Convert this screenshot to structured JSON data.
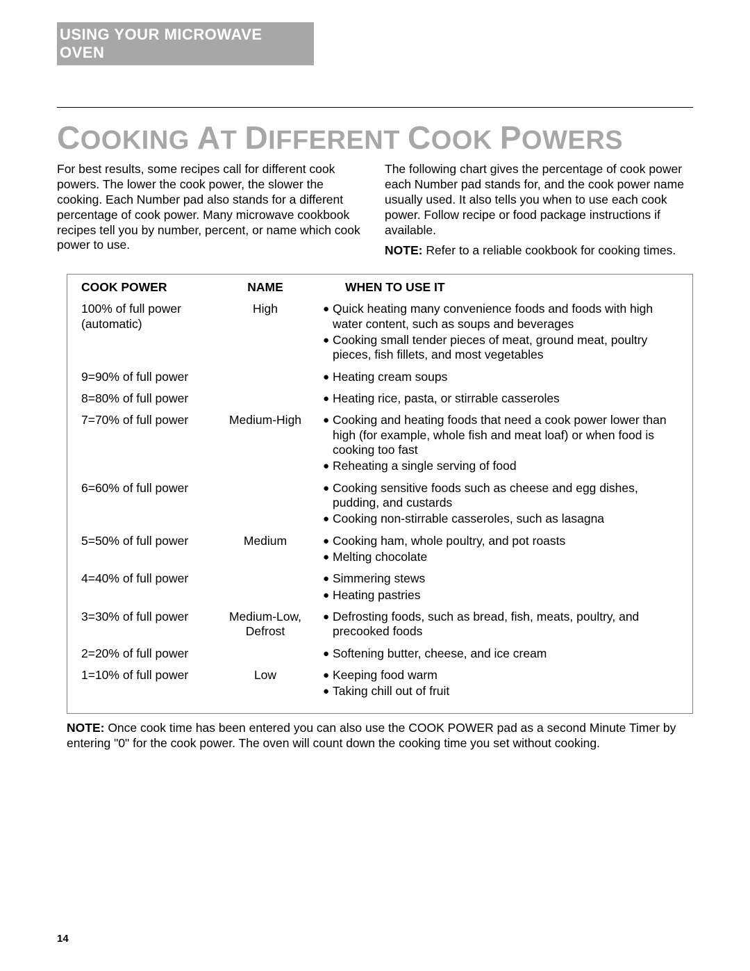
{
  "header": {
    "section": "USING YOUR MICROWAVE OVEN"
  },
  "title": {
    "cap1": "C",
    "part1": "OOKING ",
    "cap2": "A",
    "part2": "T ",
    "cap3": "D",
    "part3": "IFFERENT ",
    "cap4": "C",
    "part4": "OOK ",
    "cap5": "P",
    "part5": "OWERS"
  },
  "intro": {
    "left": "For best results, some recipes call for different cook powers. The lower the cook power, the slower the cooking. Each Number pad also stands for a different percentage of cook power. Many microwave cookbook recipes tell you by number, percent, or name which cook power to use.",
    "right1": "The following chart gives the percentage of cook power each Number pad stands for, and the cook power name usually used. It also tells you when to use each cook power. Follow recipe or food package instructions if available.",
    "note_label": "NOTE:",
    "right2": " Refer to a reliable cookbook for cooking times."
  },
  "table": {
    "headers": {
      "power": "Cook Power",
      "name": "Name",
      "use": "When To Use It"
    },
    "rows": [
      {
        "power": "100% of full power (automatic)",
        "name": "High",
        "uses": [
          "Quick heating many convenience foods and foods with high water content, such as soups and beverages",
          "Cooking small tender pieces of meat, ground meat, poultry pieces, fish fillets, and most vegetables"
        ]
      },
      {
        "power": "9=90% of full power",
        "name": "",
        "uses": [
          "Heating cream soups"
        ]
      },
      {
        "power": "8=80% of full power",
        "name": "",
        "uses": [
          "Heating rice, pasta, or stirrable casseroles"
        ]
      },
      {
        "power": "7=70% of full power",
        "name": "Medium-High",
        "uses": [
          "Cooking and heating foods that need a cook power lower than high (for example, whole fish and meat loaf) or when food is cooking too fast",
          "Reheating a single serving of food"
        ]
      },
      {
        "power": "6=60% of full power",
        "name": "",
        "uses": [
          "Cooking sensitive foods such as cheese and egg dishes, pudding, and custards",
          "Cooking non-stirrable casseroles, such as lasagna"
        ]
      },
      {
        "power": "5=50% of full power",
        "name": "Medium",
        "uses": [
          "Cooking ham, whole poultry, and pot roasts",
          "Melting chocolate"
        ]
      },
      {
        "power": "4=40% of full power",
        "name": "",
        "uses": [
          "Simmering stews",
          "Heating pastries"
        ]
      },
      {
        "power": "3=30% of full power",
        "name": "Medium-Low, Defrost",
        "uses": [
          "Defrosting foods, such as bread, fish, meats, poultry, and precooked foods"
        ]
      },
      {
        "power": "2=20% of full power",
        "name": "",
        "uses": [
          "Softening butter, cheese, and ice cream"
        ]
      },
      {
        "power": "1=10% of full power",
        "name": "Low",
        "uses": [
          "Keeping food warm",
          "Taking chill out of fruit"
        ]
      }
    ]
  },
  "footnote": {
    "label": "NOTE:",
    "text": " Once cook time has been entered you can also use the COOK POWER pad as a second Minute Timer by entering \"0\" for the cook power. The oven will count down the cooking time you set without cooking."
  },
  "page_number": "14"
}
